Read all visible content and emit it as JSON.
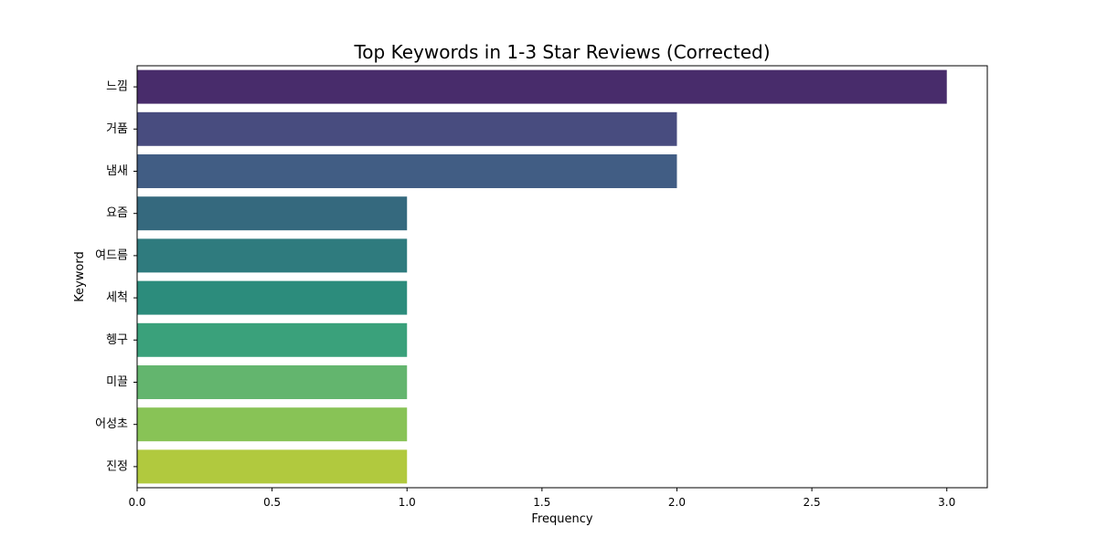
{
  "chart_data": {
    "type": "bar",
    "orientation": "horizontal",
    "title": "Top Keywords in 1-3 Star Reviews (Corrected)",
    "xlabel": "Frequency",
    "ylabel": "Keyword",
    "categories": [
      "느낌",
      "거품",
      "냄새",
      "요즘",
      "여드름",
      "세척",
      "헹구",
      "미끌",
      "어성초",
      "진정"
    ],
    "values": [
      3,
      2,
      2,
      1,
      1,
      1,
      1,
      1,
      1,
      1
    ],
    "xlim": [
      0,
      3.15
    ],
    "xticks": [
      0.0,
      0.5,
      1.0,
      1.5,
      2.0,
      2.5,
      3.0
    ],
    "xtick_labels": [
      "0.0",
      "0.5",
      "1.0",
      "1.5",
      "2.0",
      "2.5",
      "3.0"
    ],
    "colors": [
      "#482c6b",
      "#484c7f",
      "#415d84",
      "#35697e",
      "#2f7b7e",
      "#2c8c7c",
      "#3aa17b",
      "#63b56e",
      "#88c356",
      "#b1c93e"
    ],
    "grid": false,
    "legend": "none"
  }
}
